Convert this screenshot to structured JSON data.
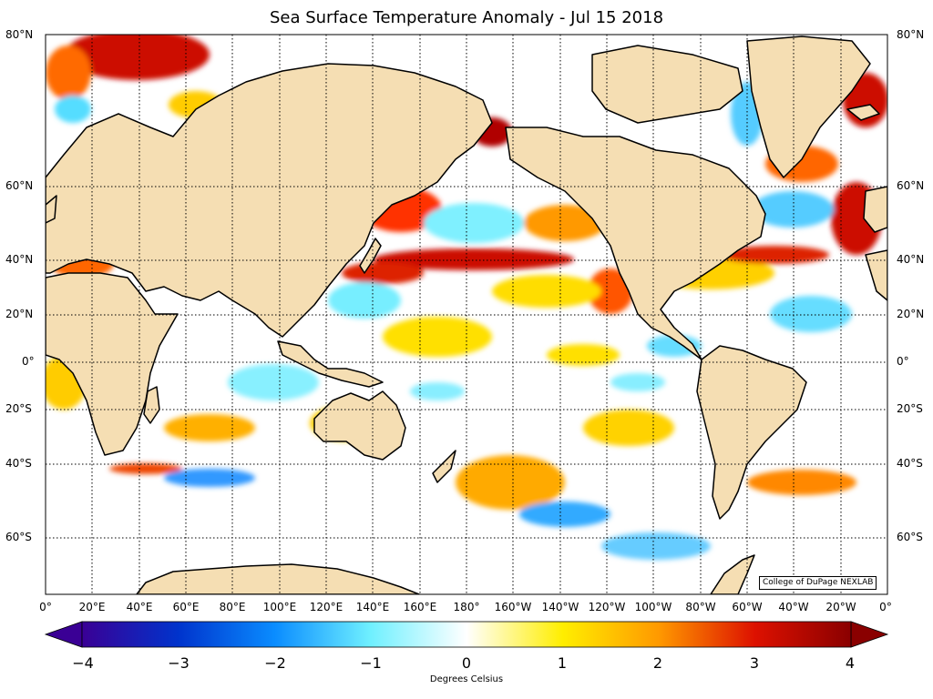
{
  "title": "Sea Surface Temperature Anomaly - Jul 15 2018",
  "latitude_labels": [
    "80°N",
    "60°N",
    "40°N",
    "20°N",
    "0°",
    "20°S",
    "40°S",
    "60°S"
  ],
  "longitude_labels": [
    "0°",
    "20°E",
    "40°E",
    "60°E",
    "80°E",
    "100°E",
    "120°E",
    "140°E",
    "160°E",
    "180°",
    "160°W",
    "140°W",
    "120°W",
    "100°W",
    "80°W",
    "60°W",
    "40°W",
    "20°W",
    "0°"
  ],
  "credit": "College of DuPage NEXLAB",
  "colorbar": {
    "ticks": [
      "−4",
      "−3",
      "−2",
      "−1",
      "0",
      "1",
      "2",
      "3",
      "4"
    ],
    "label": "Degrees Celsius",
    "min": -4,
    "max": 4,
    "colors": [
      "#3a0095",
      "#0033cc",
      "#0a8cff",
      "#6ff0ff",
      "#ffffff",
      "#ffee00",
      "#ff9900",
      "#dd1100",
      "#8a0000"
    ]
  },
  "colors": {
    "land": "#f5deb3",
    "ocean_neutral": "#ffffff",
    "coast": "#000000",
    "grid": "#000000"
  }
}
